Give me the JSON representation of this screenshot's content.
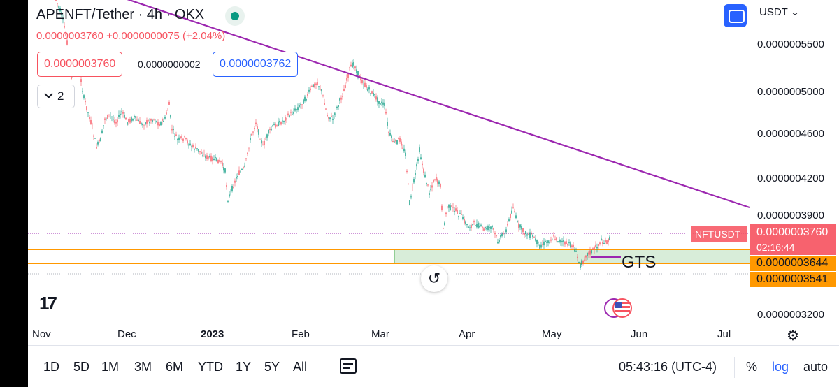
{
  "header": {
    "title": "APENFT/Tether · 4h · OKX",
    "ohlc_line": "0.0000003760 +0.0000000075 (+2.04%)"
  },
  "trade": {
    "sell_price": "0.0000003760",
    "spread": "0.0000000002",
    "buy_price": "0.0000003762"
  },
  "indicators_toggle": {
    "count": "2"
  },
  "price_scale": {
    "currency": "USDT",
    "currency_caret": "⌄",
    "ticks": [
      "0.0000005500",
      "0.0000005000",
      "0.0000004600",
      "0.0000004200",
      "0.0000003900",
      "0.0000003200"
    ],
    "symbol_label": "NFTUSDT",
    "current_price": "0.0000003760",
    "countdown": "02:16:44",
    "level_upper": "0.0000003644",
    "level_lower": "0.0000003541"
  },
  "annotation": {
    "text": "GTS"
  },
  "logo": "17",
  "time_axis": {
    "labels": [
      "Nov",
      "Dec",
      "2023",
      "Feb",
      "Mar",
      "Apr",
      "May",
      "Jun",
      "Jul"
    ]
  },
  "toolbar": {
    "ranges": [
      "1D",
      "5D",
      "1M",
      "3M",
      "6M",
      "YTD",
      "1Y",
      "5Y",
      "All"
    ],
    "clock": "05:43:16 (UTC-4)",
    "percent": "%",
    "log": "log",
    "auto": "auto"
  },
  "colors": {
    "up": "#089981",
    "down": "#f7525f",
    "trendline": "#9c27b0",
    "levels": "#ff9800",
    "zone": "#c8e6c9",
    "accent": "#2962ff"
  },
  "icons": [
    "status-dot-icon",
    "axis-toggle-icon",
    "chevron-down-icon",
    "reset-icon",
    "us-flag-icon",
    "calendar-icon",
    "gear-icon",
    "tradingview-logo"
  ]
}
